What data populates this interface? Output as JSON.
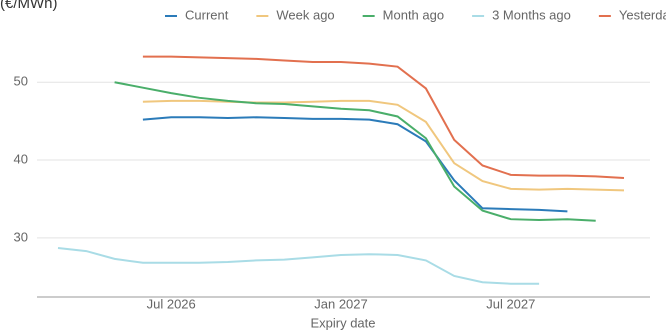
{
  "chart_data": {
    "type": "line",
    "title": "(€/MWh)",
    "x_label": "Expiry date",
    "x": [
      "Mar 2026",
      "Apr 2026",
      "May 2026",
      "Jun 2026",
      "Jul 2026",
      "Aug 2026",
      "Sep 2026",
      "Oct 2026",
      "Nov 2026",
      "Dec 2026",
      "Jan 2027",
      "Feb 2027",
      "Mar 2027",
      "Apr 2027",
      "May 2027",
      "Jun 2027",
      "Jul 2027",
      "Aug 2027",
      "Sep 2027",
      "Oct 2027",
      "Nov 2027"
    ],
    "xticks": [
      "Jul 2026",
      "Jan 2027",
      "Jul 2027"
    ],
    "ylim": [
      22.4,
      58
    ],
    "yticks": [
      30,
      40,
      50
    ],
    "grid": true,
    "legend": "top-right",
    "series": [
      {
        "name": "Current",
        "color": "#2b7bb9",
        "values": [
          null,
          null,
          null,
          45.2,
          45.5,
          45.5,
          45.4,
          45.5,
          45.4,
          45.3,
          45.3,
          45.2,
          44.6,
          42.4,
          37.4,
          33.8,
          33.7,
          33.6,
          33.4,
          null,
          null
        ]
      },
      {
        "name": "Week ago",
        "color": "#f0c77e",
        "values": [
          null,
          null,
          null,
          47.5,
          47.6,
          47.6,
          47.5,
          47.4,
          47.4,
          47.5,
          47.6,
          47.6,
          47.1,
          44.9,
          39.6,
          37.3,
          36.3,
          36.2,
          36.3,
          36.2,
          36.1
        ]
      },
      {
        "name": "Month ago",
        "color": "#4aae6a",
        "values": [
          null,
          null,
          50.0,
          49.3,
          48.6,
          48.0,
          47.6,
          47.3,
          47.2,
          46.9,
          46.6,
          46.4,
          45.6,
          42.8,
          36.6,
          33.5,
          32.4,
          32.3,
          32.4,
          32.2,
          null
        ]
      },
      {
        "name": "3 Months ago",
        "color": "#a9dce6",
        "values": [
          28.7,
          28.3,
          27.3,
          26.8,
          26.8,
          26.8,
          26.9,
          27.1,
          27.2,
          27.5,
          27.8,
          27.9,
          27.8,
          27.1,
          25.1,
          24.3,
          24.1,
          24.1,
          null,
          null,
          null
        ]
      },
      {
        "name": "Yesterday",
        "color": "#e2704f",
        "values": [
          null,
          null,
          null,
          53.3,
          53.3,
          53.2,
          53.1,
          53.0,
          52.8,
          52.6,
          52.6,
          52.4,
          52.0,
          49.2,
          42.6,
          39.3,
          38.1,
          38.0,
          38.0,
          37.9,
          37.7
        ]
      }
    ]
  }
}
